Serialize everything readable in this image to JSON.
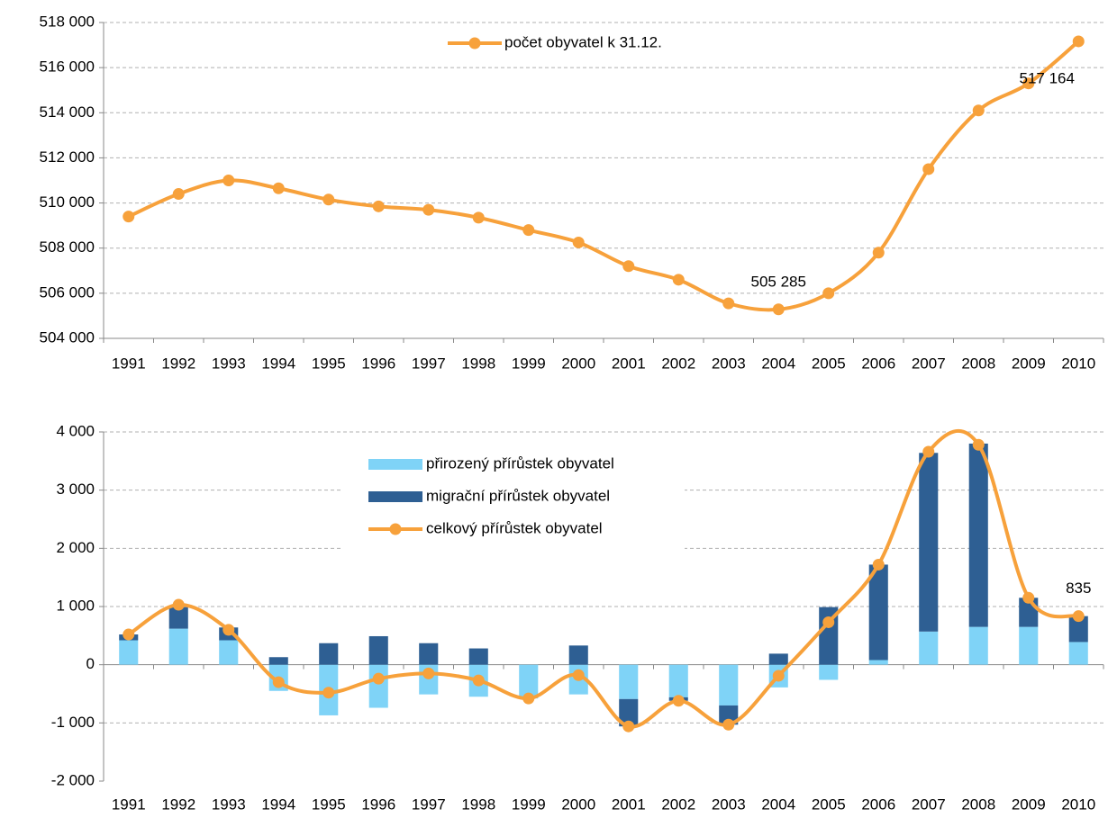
{
  "chart_data": [
    {
      "type": "line",
      "categories": [
        "1991",
        "1992",
        "1993",
        "1994",
        "1995",
        "1996",
        "1997",
        "1998",
        "1999",
        "2000",
        "2001",
        "2002",
        "2003",
        "2004",
        "2005",
        "2006",
        "2007",
        "2008",
        "2009",
        "2010"
      ],
      "series": [
        {
          "name": "počet obyvatel k 31.12.",
          "color": "#f7a13b",
          "values": [
            509400,
            510400,
            511000,
            510650,
            510150,
            509850,
            509700,
            509350,
            508800,
            508250,
            507200,
            506600,
            505550,
            505285,
            506000,
            507800,
            511500,
            514100,
            515300,
            517164
          ],
          "value_labels": [
            null,
            null,
            null,
            null,
            null,
            null,
            null,
            null,
            null,
            null,
            null,
            null,
            null,
            "505 285",
            null,
            null,
            null,
            null,
            null,
            "517 164"
          ]
        }
      ],
      "ylim": [
        504000,
        518000
      ],
      "yticks": [
        {
          "value": 504000,
          "label": "504 000"
        },
        {
          "value": 506000,
          "label": "506 000"
        },
        {
          "value": 508000,
          "label": "508 000"
        },
        {
          "value": 510000,
          "label": "510 000"
        },
        {
          "value": 512000,
          "label": "512 000"
        },
        {
          "value": 514000,
          "label": "514 000"
        },
        {
          "value": 516000,
          "label": "516 000"
        },
        {
          "value": 518000,
          "label": "518 000"
        }
      ],
      "grid": true,
      "legend": "top"
    },
    {
      "type": "bar",
      "categories": [
        "1991",
        "1992",
        "1993",
        "1994",
        "1995",
        "1996",
        "1997",
        "1998",
        "1999",
        "2000",
        "2001",
        "2002",
        "2003",
        "2004",
        "2005",
        "2006",
        "2007",
        "2008",
        "2009",
        "2010"
      ],
      "series": [
        {
          "name": "přirozený přírůstek obyvatel",
          "color": "#7fd3f7",
          "values": [
            420,
            620,
            420,
            -450,
            -870,
            -740,
            -510,
            -550,
            -580,
            -510,
            -590,
            -560,
            -700,
            -390,
            -260,
            80,
            570,
            650,
            650,
            390
          ]
        },
        {
          "name": "migrační přírůstek obyvatel",
          "color": "#2e5f93",
          "values": [
            100,
            370,
            220,
            130,
            370,
            490,
            370,
            280,
            0,
            330,
            -470,
            -60,
            -330,
            190,
            990,
            1640,
            3070,
            3150,
            500,
            445
          ]
        },
        {
          "name": "celkový přírůstek obyvatel",
          "color": "#f7a13b",
          "type": "line",
          "values": [
            520,
            1030,
            600,
            -300,
            -480,
            -240,
            -150,
            -270,
            -580,
            -180,
            -1060,
            -620,
            -1030,
            -190,
            730,
            1720,
            3660,
            3780,
            1150,
            835
          ],
          "value_labels": [
            null,
            null,
            null,
            null,
            null,
            null,
            null,
            null,
            null,
            null,
            null,
            null,
            null,
            null,
            null,
            null,
            null,
            null,
            null,
            "835"
          ]
        }
      ],
      "ylim": [
        -2000,
        4000
      ],
      "yticks": [
        {
          "value": -2000,
          "label": "-2 000"
        },
        {
          "value": -1000,
          "label": "-1 000"
        },
        0,
        {
          "value": 1000,
          "label": "1 000"
        },
        {
          "value": 2000,
          "label": "2 000"
        },
        {
          "value": 3000,
          "label": "3 000"
        },
        {
          "value": 4000,
          "label": "4 000"
        }
      ],
      "grid": true,
      "legend": "top-center"
    }
  ]
}
